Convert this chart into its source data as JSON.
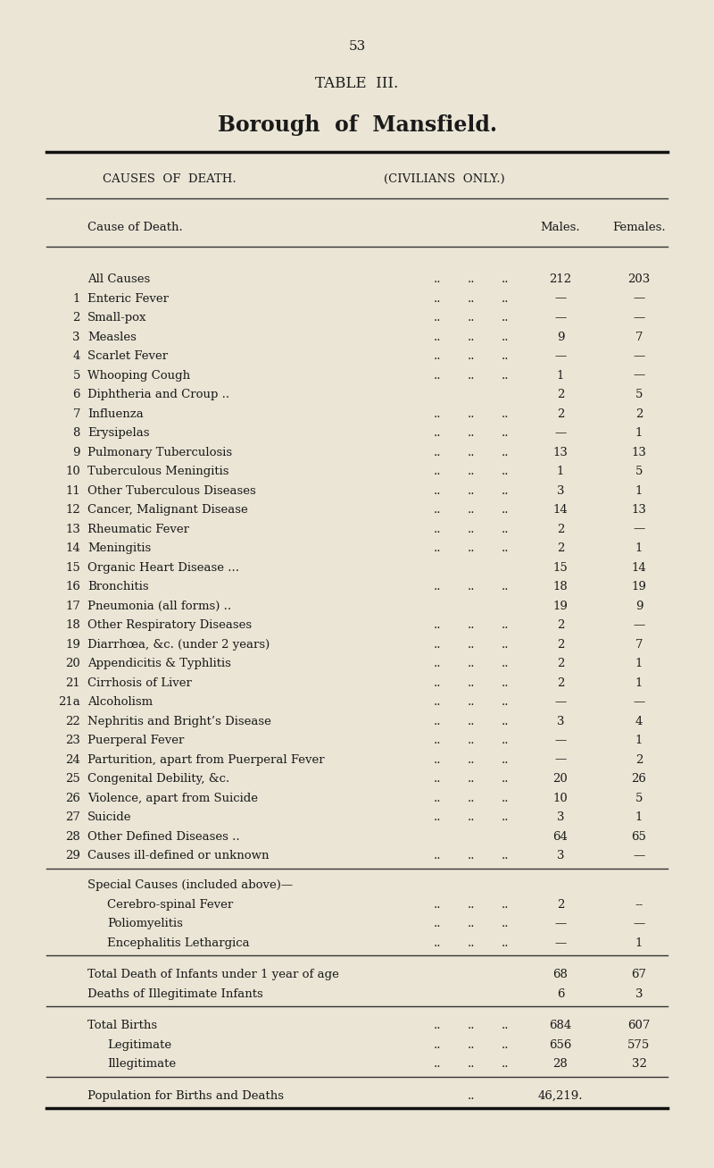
{
  "page_number": "53",
  "table_title": "TABLE  III.",
  "subtitle": "Borough  of  Mansfield.",
  "header1": "CAUSES  OF  DEATH.",
  "header2": "(CIVILIANS  ONLY.)",
  "col_cause": "Cause of Death.",
  "col_males": "Males.",
  "col_females": "Females.",
  "bg_color": "#EAE5D5",
  "text_color": "#1a1a1a",
  "rows": [
    {
      "num": "",
      "cause": "All Causes",
      "dots": true,
      "males": "212",
      "females": "203"
    },
    {
      "num": "1",
      "cause": "Enteric Fever",
      "dots": true,
      "males": "—",
      "females": "—"
    },
    {
      "num": "2",
      "cause": "Small-pox",
      "dots": true,
      "males": "—",
      "females": "—"
    },
    {
      "num": "3",
      "cause": "Measles",
      "dots": true,
      "males": "9",
      "females": "7"
    },
    {
      "num": "4",
      "cause": "Scarlet Fever",
      "dots": true,
      "males": "—",
      "females": "—"
    },
    {
      "num": "5",
      "cause": "Whooping Cough",
      "dots": true,
      "males": "1",
      "females": "—"
    },
    {
      "num": "6",
      "cause": "Diphtheria and Croup ..",
      "dots": false,
      "males": "2",
      "females": "5"
    },
    {
      "num": "7",
      "cause": "Influenza",
      "dots": true,
      "males": "2",
      "females": "2"
    },
    {
      "num": "8",
      "cause": "Erysipelas",
      "dots": true,
      "males": "—",
      "females": "1"
    },
    {
      "num": "9",
      "cause": "Pulmonary Tuberculosis",
      "dots": true,
      "males": "13",
      "females": "13"
    },
    {
      "num": "10",
      "cause": "Tuberculous Meningitis",
      "dots": true,
      "males": "1",
      "females": "5"
    },
    {
      "num": "11",
      "cause": "Other Tuberculous Diseases",
      "dots": true,
      "males": "3",
      "females": "1"
    },
    {
      "num": "12",
      "cause": "Cancer, Malignant Disease",
      "dots": true,
      "males": "14",
      "females": "13"
    },
    {
      "num": "13",
      "cause": "Rheumatic Fever",
      "dots": true,
      "males": "2",
      "females": "—"
    },
    {
      "num": "14",
      "cause": "Meningitis",
      "dots": true,
      "males": "2",
      "females": "1"
    },
    {
      "num": "15",
      "cause": "Organic Heart Disease ...",
      "dots": false,
      "males": "15",
      "females": "14"
    },
    {
      "num": "16",
      "cause": "Bronchitis",
      "dots": true,
      "males": "18",
      "females": "19"
    },
    {
      "num": "17",
      "cause": "Pneumonia (all forms) ..",
      "dots": false,
      "males": "19",
      "females": "9"
    },
    {
      "num": "18",
      "cause": "Other Respiratory Diseases",
      "dots": true,
      "males": "2",
      "females": "—"
    },
    {
      "num": "19",
      "cause": "Diarrhœa, &c. (under 2 years)",
      "dots": true,
      "males": "2",
      "females": "7"
    },
    {
      "num": "20",
      "cause": "Appendicitis & Typhlitis",
      "dots": true,
      "males": "2",
      "females": "1"
    },
    {
      "num": "21",
      "cause": "Cirrhosis of Liver",
      "dots": true,
      "males": "2",
      "females": "1"
    },
    {
      "num": "21a",
      "cause": "Alcoholism",
      "dots": true,
      "males": "—",
      "females": "—"
    },
    {
      "num": "22",
      "cause": "Nephritis and Bright’s Disease",
      "dots": true,
      "males": "3",
      "females": "4"
    },
    {
      "num": "23",
      "cause": "Puerperal Fever",
      "dots": true,
      "males": "—",
      "females": "1"
    },
    {
      "num": "24",
      "cause": "Parturition, apart from Puerperal Fever",
      "dots": true,
      "males": "—",
      "females": "2"
    },
    {
      "num": "25",
      "cause": "Congenital Debility, &c.",
      "dots": true,
      "males": "20",
      "females": "26"
    },
    {
      "num": "26",
      "cause": "Violence, apart from Suicide",
      "dots": true,
      "males": "10",
      "females": "5"
    },
    {
      "num": "27",
      "cause": "Suicide",
      "dots": true,
      "males": "3",
      "females": "1"
    },
    {
      "num": "28",
      "cause": "Other Defined Diseases ..",
      "dots": false,
      "males": "64",
      "females": "65"
    },
    {
      "num": "29",
      "cause": "Causes ill-defined or unknown",
      "dots": true,
      "males": "3",
      "females": "—"
    }
  ],
  "special_section_header": "Special Causes (included above)—",
  "special_rows": [
    {
      "cause": "Cerebro-spinal Fever",
      "dots": true,
      "males": "2",
      "females": "--"
    },
    {
      "cause": "Poliomyelitis",
      "dots": true,
      "males": "—",
      "females": "—"
    },
    {
      "cause": "Encephalitis Lethargica",
      "dots": true,
      "males": "—",
      "females": "1"
    }
  ],
  "summary_section1": [
    {
      "cause": "Total Death of Infants under 1 year of age",
      "dots": true,
      "males": "68",
      "females": "67"
    },
    {
      "cause": "Deaths of Illegitimate Infants",
      "dots": true,
      "males": "6",
      "females": "3"
    }
  ],
  "summary_section2": [
    {
      "cause": "Total Births",
      "dots": true,
      "males": "684",
      "females": "607"
    },
    {
      "cause": "Legitimate",
      "dots": true,
      "males": "656",
      "females": "575"
    },
    {
      "cause": "Illegitimate",
      "dots": true,
      "males": "28",
      "females": "32"
    }
  ],
  "population_label": "Population for Births and Deaths",
  "population_dots": true,
  "population_value": "46,219."
}
